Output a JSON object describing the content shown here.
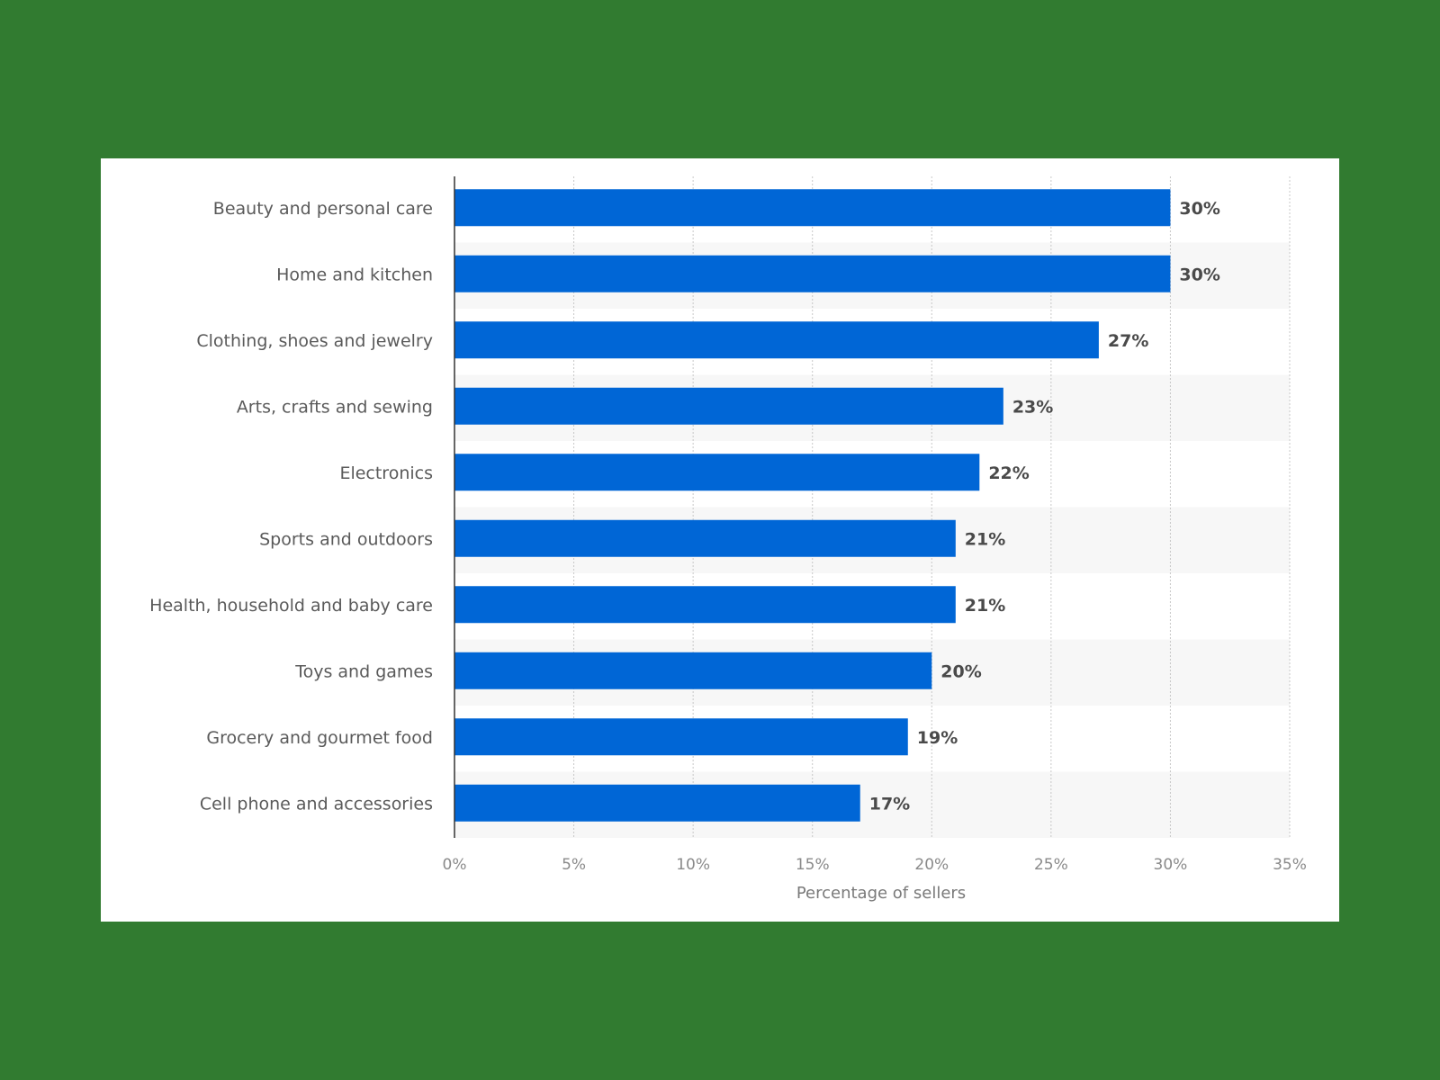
{
  "colors": {
    "background": "#317b30",
    "panel": "#ffffff",
    "bar": "#0066d6",
    "band": "#f7f7f7"
  },
  "chart_data": {
    "type": "bar",
    "orientation": "horizontal",
    "categories": [
      "Beauty and personal care",
      "Home and kitchen",
      "Clothing, shoes and jewelry",
      "Arts, crafts and sewing",
      "Electronics",
      "Sports and outdoors",
      "Health, household and baby care",
      "Toys and games",
      "Grocery and gourmet food",
      "Cell phone and accessories"
    ],
    "values": [
      30,
      30,
      27,
      23,
      22,
      21,
      21,
      20,
      19,
      17
    ],
    "value_labels": [
      "30%",
      "30%",
      "27%",
      "23%",
      "22%",
      "21%",
      "21%",
      "20%",
      "19%",
      "17%"
    ],
    "title": "",
    "xlabel": "Percentage of sellers",
    "ylabel": "",
    "xlim": [
      0,
      35
    ],
    "xticks": [
      0,
      5,
      10,
      15,
      20,
      25,
      30,
      35
    ],
    "xtick_labels": [
      "0%",
      "5%",
      "10%",
      "15%",
      "20%",
      "25%",
      "30%",
      "35%"
    ],
    "grid": "vertical dotted",
    "legend": "none"
  }
}
